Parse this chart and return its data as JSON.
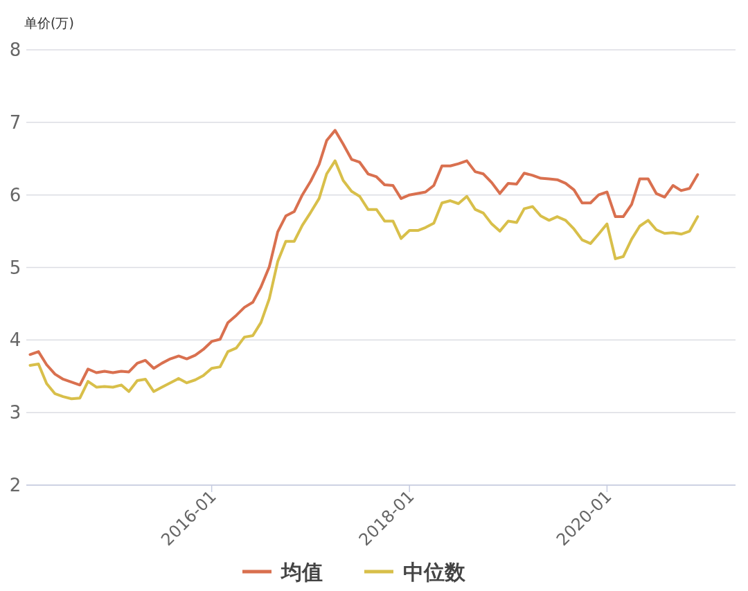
{
  "chart_data": {
    "type": "line",
    "ylabel": "单价(万)",
    "x": [
      "2014-03",
      "2014-04",
      "2014-05",
      "2014-06",
      "2014-07",
      "2014-08",
      "2014-09",
      "2014-10",
      "2014-11",
      "2014-12",
      "2015-01",
      "2015-02",
      "2015-03",
      "2015-04",
      "2015-05",
      "2015-06",
      "2015-07",
      "2015-08",
      "2015-09",
      "2015-10",
      "2015-11",
      "2015-12",
      "2016-01",
      "2016-02",
      "2016-03",
      "2016-04",
      "2016-05",
      "2016-06",
      "2016-07",
      "2016-08",
      "2016-09",
      "2016-10",
      "2016-11",
      "2016-12",
      "2017-01",
      "2017-02",
      "2017-03",
      "2017-04",
      "2017-05",
      "2017-06",
      "2017-07",
      "2017-08",
      "2017-09",
      "2017-10",
      "2017-11",
      "2017-12",
      "2018-01",
      "2018-02",
      "2018-03",
      "2018-04",
      "2018-05",
      "2018-06",
      "2018-07",
      "2018-08",
      "2018-09",
      "2018-10",
      "2018-11",
      "2018-12",
      "2019-01",
      "2019-02",
      "2019-03",
      "2019-04",
      "2019-05",
      "2019-06",
      "2019-07",
      "2019-08",
      "2019-09",
      "2019-10",
      "2019-11",
      "2019-12",
      "2020-01",
      "2020-02",
      "2020-03",
      "2020-04",
      "2020-05",
      "2020-06",
      "2020-07",
      "2020-08",
      "2020-09",
      "2020-10",
      "2020-11",
      "2020-12"
    ],
    "series": [
      {
        "name": "均值",
        "color": "#d9704f",
        "values": [
          3.8,
          3.84,
          3.66,
          3.53,
          3.46,
          3.42,
          3.38,
          3.6,
          3.55,
          3.57,
          3.55,
          3.57,
          3.56,
          3.68,
          3.72,
          3.61,
          3.68,
          3.74,
          3.78,
          3.74,
          3.79,
          3.87,
          3.98,
          4.01,
          4.24,
          4.34,
          4.45,
          4.52,
          4.73,
          5.01,
          5.49,
          5.71,
          5.77,
          6.0,
          6.19,
          6.42,
          6.75,
          6.89,
          6.7,
          6.49,
          6.45,
          6.29,
          6.25,
          6.14,
          6.13,
          5.95,
          6.0,
          6.02,
          6.04,
          6.13,
          6.4,
          6.4,
          6.43,
          6.47,
          6.32,
          6.29,
          6.17,
          6.02,
          6.16,
          6.15,
          6.3,
          6.27,
          6.23,
          6.22,
          6.21,
          6.16,
          6.07,
          5.89,
          5.89,
          6.0,
          6.04,
          5.7,
          5.7,
          5.87,
          6.22,
          6.22,
          6.02,
          5.97,
          6.13,
          6.06,
          6.09,
          6.28
        ]
      },
      {
        "name": "中位数",
        "color": "#d8bf4a",
        "values": [
          3.65,
          3.67,
          3.4,
          3.26,
          3.22,
          3.19,
          3.2,
          3.43,
          3.35,
          3.36,
          3.35,
          3.38,
          3.29,
          3.44,
          3.46,
          3.29,
          3.35,
          3.41,
          3.47,
          3.41,
          3.45,
          3.51,
          3.61,
          3.63,
          3.84,
          3.89,
          4.04,
          4.06,
          4.24,
          4.57,
          5.08,
          5.36,
          5.36,
          5.58,
          5.76,
          5.95,
          6.29,
          6.47,
          6.2,
          6.05,
          5.98,
          5.8,
          5.8,
          5.64,
          5.64,
          5.4,
          5.51,
          5.51,
          5.55,
          5.61,
          5.89,
          5.92,
          5.88,
          5.98,
          5.8,
          5.75,
          5.6,
          5.5,
          5.64,
          5.62,
          5.81,
          5.84,
          5.71,
          5.65,
          5.7,
          5.65,
          5.53,
          5.38,
          5.33,
          5.46,
          5.6,
          5.12,
          5.15,
          5.39,
          5.57,
          5.65,
          5.52,
          5.47,
          5.48,
          5.46,
          5.5,
          5.7
        ]
      }
    ],
    "xlim": [
      "2014-02-15",
      "2021-04-20"
    ],
    "xticks": [
      "2016-01",
      "2018-01",
      "2020-01"
    ],
    "ylim": [
      2,
      8
    ],
    "yticks": [
      2,
      3,
      4,
      5,
      6,
      7,
      8
    ],
    "grid": "y",
    "legend": "bottom",
    "marker": "none",
    "line_style": "solid"
  }
}
